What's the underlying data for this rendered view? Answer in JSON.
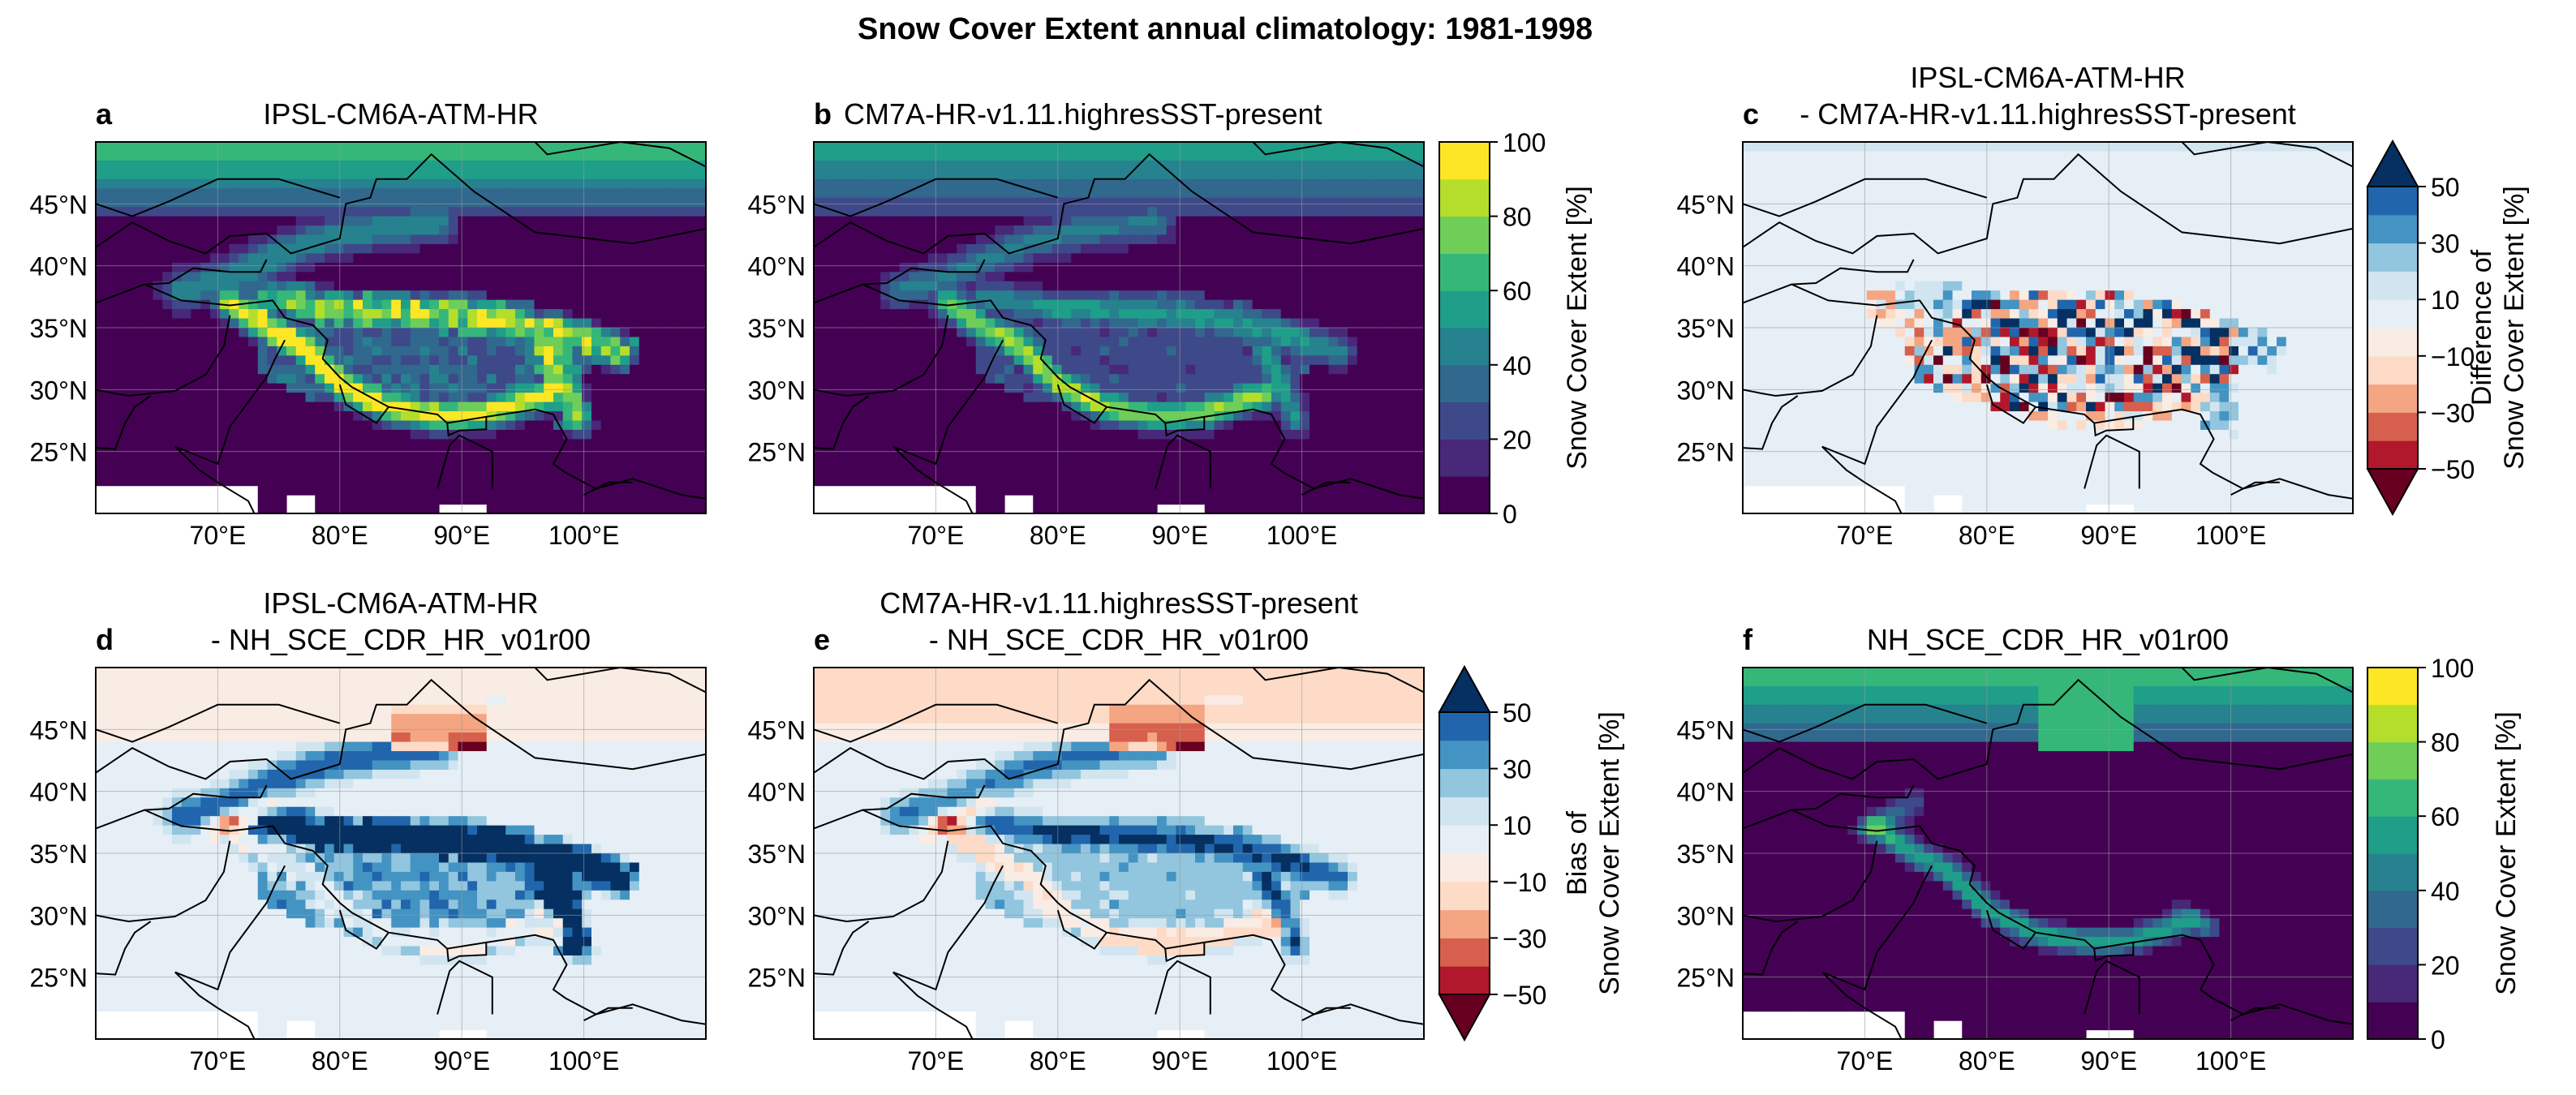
{
  "figure_title": "Snow Cover Extent annual climatology: 1981-1998",
  "axes": {
    "lat_ticks": [
      "25°N",
      "30°N",
      "35°N",
      "40°N",
      "45°N"
    ],
    "lon_ticks": [
      "70°E",
      "80°E",
      "90°E",
      "100°E"
    ]
  },
  "panels": [
    {
      "letter": "a",
      "title_lines": [
        "IPSL-CM6A-ATM-HR"
      ],
      "field": "sce",
      "model": "ipsl"
    },
    {
      "letter": "b",
      "title_lines": [
        "CM7A-HR-v1.11.highresSST-present"
      ],
      "field": "sce",
      "model": "cm7a"
    },
    {
      "letter": "c",
      "title_lines": [
        "IPSL-CM6A-ATM-HR",
        "- CM7A-HR-v1.11.highresSST-present"
      ],
      "field": "diff",
      "model": "ipsl_minus_cm7a"
    },
    {
      "letter": "d",
      "title_lines": [
        "IPSL-CM6A-ATM-HR",
        "- NH_SCE_CDR_HR_v01r00"
      ],
      "field": "bias",
      "model": "ipsl_bias"
    },
    {
      "letter": "e",
      "title_lines": [
        "CM7A-HR-v1.11.highresSST-present",
        "- NH_SCE_CDR_HR_v01r00"
      ],
      "field": "bias",
      "model": "cm7a_bias"
    },
    {
      "letter": "f",
      "title_lines": [
        "NH_SCE_CDR_HR_v01r00"
      ],
      "field": "sce",
      "model": "obs"
    }
  ],
  "colorbars": [
    {
      "label_lines": [
        "Snow Cover Extent [%]"
      ],
      "ticks": [
        "0",
        "20",
        "40",
        "60",
        "80",
        "100"
      ],
      "colors": [
        "#440154",
        "#482878",
        "#3e4989",
        "#31688e",
        "#26828e",
        "#1f9e89",
        "#35b779",
        "#6ece58",
        "#b5de2b",
        "#fde725"
      ]
    },
    {
      "label_lines": [
        "Difference of",
        "Snow Cover Extent [%]"
      ],
      "ticks": [
        "−50",
        "−30",
        "−10",
        "10",
        "30",
        "50"
      ],
      "colors": [
        "#67001f",
        "#b2182b",
        "#d6604d",
        "#f4a582",
        "#fddbc7",
        "#f9ece4",
        "#e6eff6",
        "#d1e5f0",
        "#92c5de",
        "#4393c3",
        "#2166ac",
        "#053061"
      ]
    },
    {
      "label_lines": [
        "Bias of",
        "Snow Cover Extent [%]"
      ],
      "ticks": [
        "−50",
        "−30",
        "−10",
        "10",
        "30",
        "50"
      ],
      "colors": [
        "#67001f",
        "#b2182b",
        "#d6604d",
        "#f4a582",
        "#fddbc7",
        "#f9ece4",
        "#e6eff6",
        "#d1e5f0",
        "#92c5de",
        "#4393c3",
        "#2166ac",
        "#053061"
      ]
    },
    {
      "label_lines": [
        "Snow Cover Extent [%]"
      ],
      "ticks": [
        "0",
        "20",
        "40",
        "60",
        "80",
        "100"
      ],
      "colors": [
        "#440154",
        "#482878",
        "#3e4989",
        "#31688e",
        "#26828e",
        "#1f9e89",
        "#35b779",
        "#6ece58",
        "#b5de2b",
        "#fde725"
      ]
    }
  ],
  "map_extent": {
    "lon": [
      60,
      110
    ],
    "lat": [
      20,
      50
    ]
  }
}
